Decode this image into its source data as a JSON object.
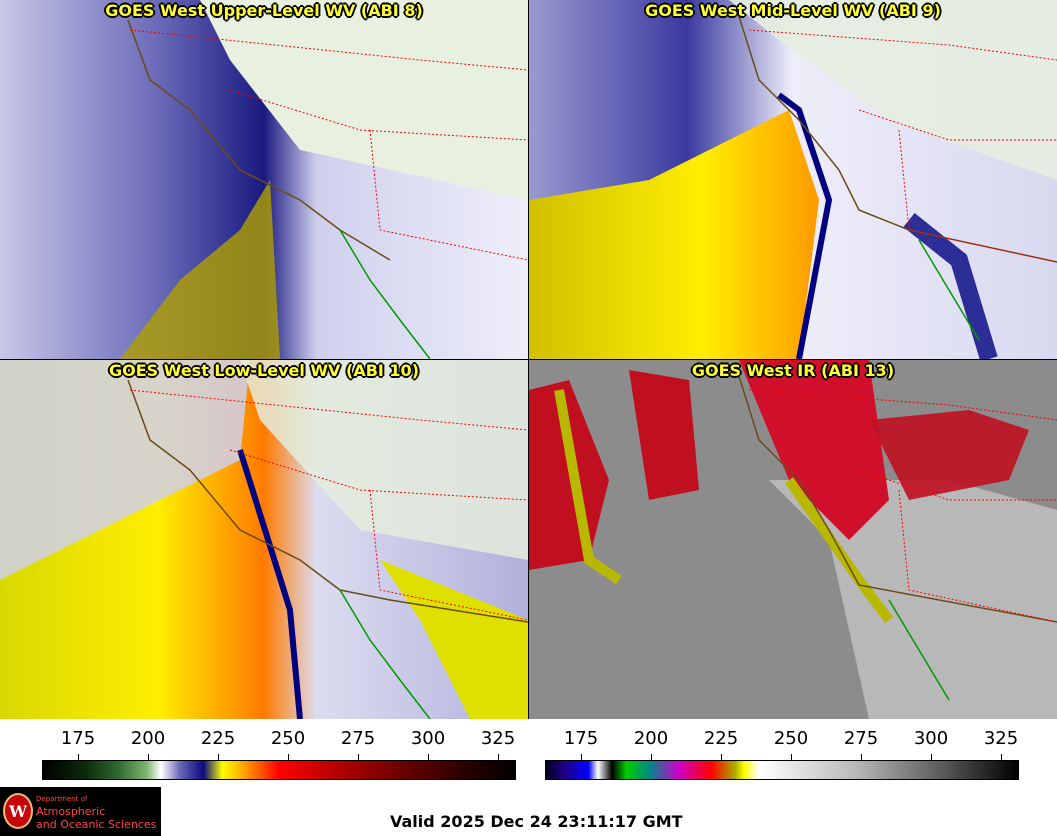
{
  "panels": [
    {
      "title": "GOES West Upper-Level WV (ABI 8)"
    },
    {
      "title": "GOES West Mid-Level WV (ABI 9)"
    },
    {
      "title": "GOES West Low-Level WV (ABI 10)"
    },
    {
      "title": "GOES West IR (ABI 13)"
    }
  ],
  "scales": {
    "wv": {
      "ticks": [
        "175",
        "200",
        "225",
        "250",
        "275",
        "300",
        "325"
      ]
    },
    "ir": {
      "ticks": [
        "175",
        "200",
        "225",
        "250",
        "275",
        "300",
        "325"
      ]
    }
  },
  "logo": {
    "dept": "Department of",
    "line1": "Atmospheric",
    "line2": "and Oceanic Sciences",
    "seal_letter": "W"
  },
  "valid_time": "Valid 2025 Dec 24 23:11:17 GMT",
  "colors": {
    "title_text": "#ffff33",
    "state_border": "#ff0000",
    "coastline": "#6b4a1a",
    "mexico_coast": "#009900"
  }
}
